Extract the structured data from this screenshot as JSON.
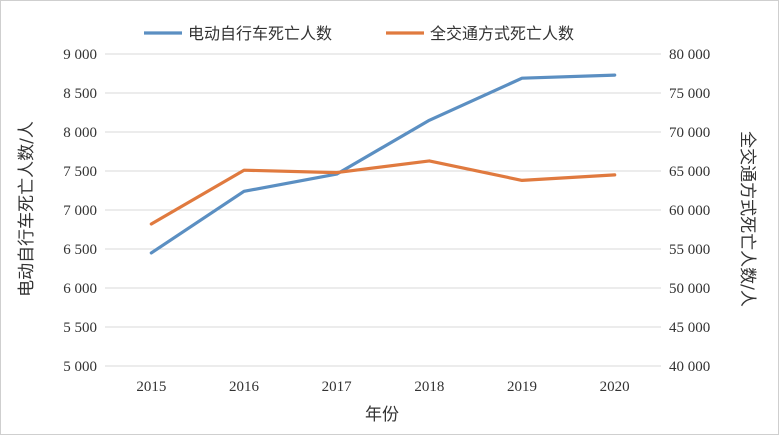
{
  "chart_data": {
    "type": "line",
    "title": "",
    "x": [
      "2015",
      "2016",
      "2017",
      "2018",
      "2019",
      "2020"
    ],
    "xlabel": "年份",
    "ylabel_left": "电动自行车死亡人数/人",
    "ylabel_right": "全交通方式死亡人数/人",
    "ylim_left": [
      5000,
      9000
    ],
    "ylim_right": [
      40000,
      80000
    ],
    "yticks_left": [
      "5 000",
      "5 500",
      "6 000",
      "6 500",
      "7 000",
      "7 500",
      "8 000",
      "8 500",
      "9 000"
    ],
    "yticks_right": [
      "40 000",
      "45 000",
      "50 000",
      "55 000",
      "60 000",
      "65 000",
      "70 000",
      "75 000",
      "80 000"
    ],
    "grid": true,
    "legend": "top-center",
    "series": [
      {
        "name": "电动自行车死亡人数",
        "axis": "left",
        "color": "#5b8fc2",
        "values": [
          6450,
          7240,
          7460,
          8150,
          8690,
          8730
        ]
      },
      {
        "name": "全交通方式死亡人数",
        "axis": "right",
        "color": "#e07a3f",
        "values": [
          58200,
          65100,
          64800,
          66300,
          63800,
          64500
        ]
      }
    ]
  }
}
